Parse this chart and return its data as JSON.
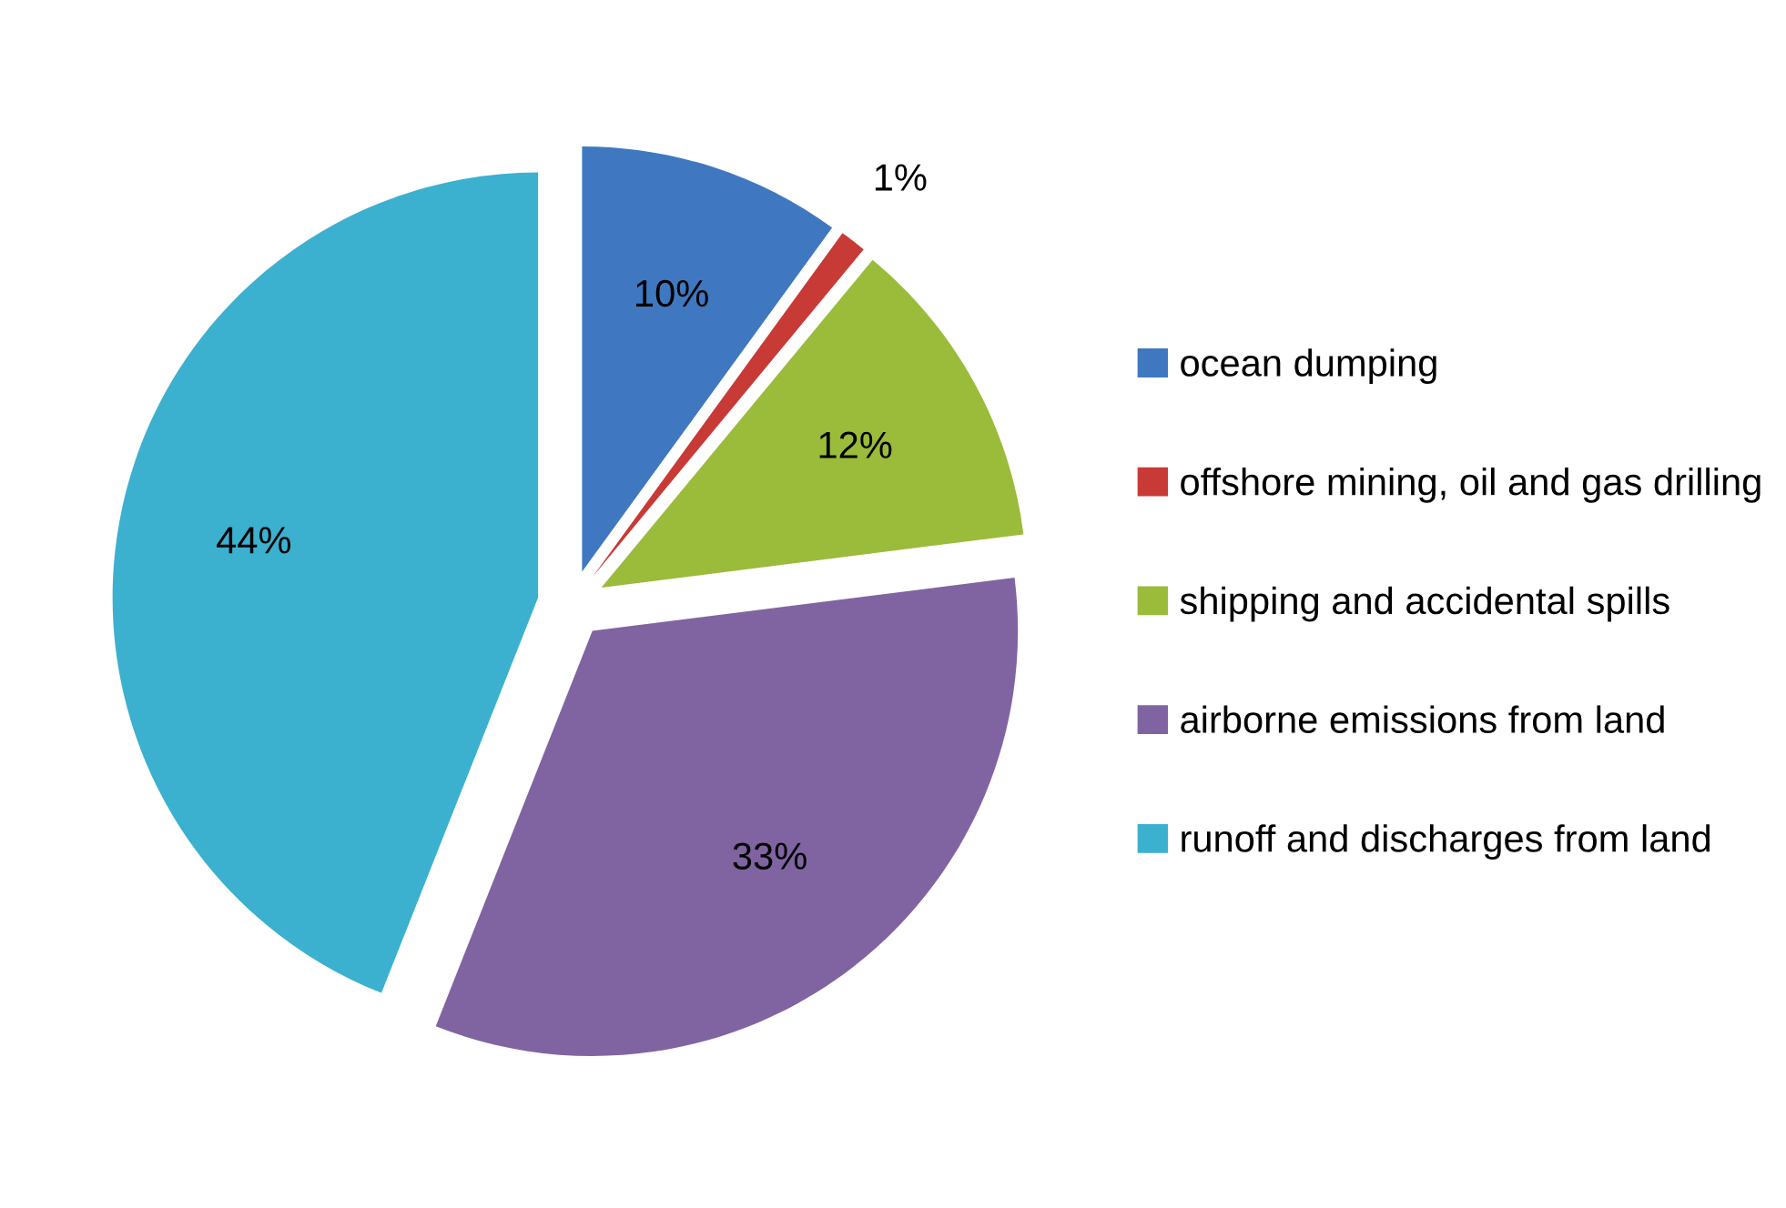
{
  "chart_data": {
    "type": "pie",
    "categories": [
      "ocean dumping",
      "offshore mining, oil and gas drilling",
      "shipping and accidental spills",
      "airborne emissions from land",
      "runoff and discharges from land"
    ],
    "values": [
      10,
      1,
      12,
      33,
      44
    ],
    "colors": [
      "#3f78c0",
      "#c83a35",
      "#9bbb3a",
      "#8064a2",
      "#3cb0cf"
    ],
    "value_labels": [
      "10%",
      "1%",
      "12%",
      "33%",
      "44%"
    ],
    "legend": "right"
  }
}
